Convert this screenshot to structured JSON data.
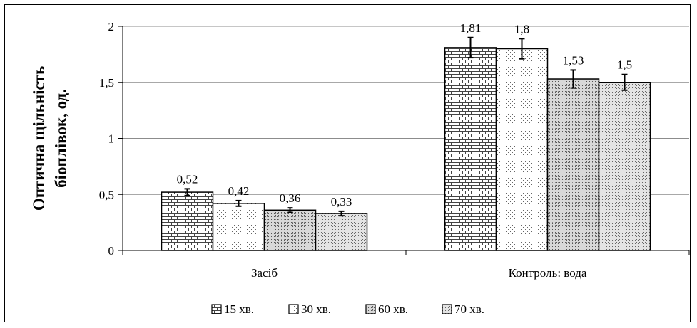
{
  "chart_data": {
    "type": "bar",
    "title": "",
    "xlabel": "",
    "ylabel_lines": [
      "Оптична щільність",
      "біоплівок, од."
    ],
    "ylim": [
      0,
      2
    ],
    "yticks": [
      "0",
      "0,5",
      "1",
      "1,5",
      "2"
    ],
    "categories": [
      "Засіб",
      "Контроль: вода"
    ],
    "series": [
      {
        "name": "15 хв.",
        "values": [
          0.52,
          1.81
        ],
        "labels": [
          "0,52",
          "1,81"
        ],
        "errors": [
          0.03,
          0.09
        ],
        "pattern": "brick"
      },
      {
        "name": "30 хв.",
        "values": [
          0.42,
          1.8
        ],
        "labels": [
          "0,42",
          "1,8"
        ],
        "errors": [
          0.025,
          0.09
        ],
        "pattern": "dots-light"
      },
      {
        "name": "60 хв.",
        "values": [
          0.36,
          1.53
        ],
        "labels": [
          "0,36",
          "1,53"
        ],
        "errors": [
          0.02,
          0.08
        ],
        "pattern": "dots-dense"
      },
      {
        "name": "70 хв.",
        "values": [
          0.33,
          1.5
        ],
        "labels": [
          "0,33",
          "1,5"
        ],
        "errors": [
          0.02,
          0.07
        ],
        "pattern": "dots-medium"
      }
    ],
    "grid": true,
    "legend_position": "bottom"
  }
}
